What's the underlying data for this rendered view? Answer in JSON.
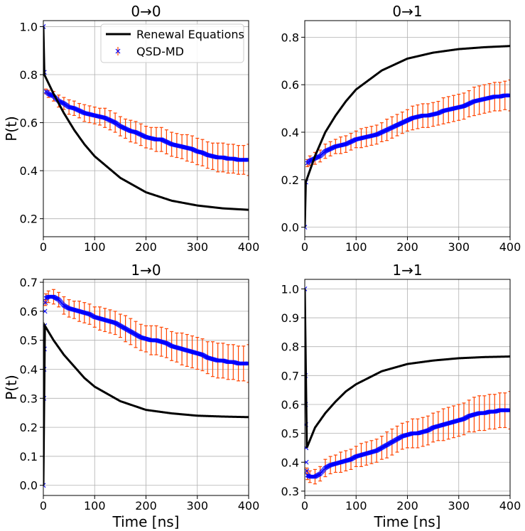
{
  "chart_data": [
    {
      "type": "line",
      "title": "0→0",
      "xlabel": "",
      "ylabel": "P(t)",
      "xlim": [
        0,
        400
      ],
      "ylim": [
        0.125,
        1.025
      ],
      "xticks": [
        0,
        100,
        200,
        300,
        400
      ],
      "yticks": [
        0.2,
        0.4,
        0.6,
        0.8,
        1.0
      ],
      "ytick_labels": [
        "0.2",
        "0.4",
        "0.6",
        "0.8",
        "1.0"
      ],
      "grid": true,
      "legend": {
        "position": "top-right",
        "entries": [
          "Renewal Equations",
          "QSD-MD"
        ]
      },
      "series": [
        {
          "name": "Renewal Equations",
          "kind": "line",
          "color": "#000000",
          "x": [
            0,
            2,
            20,
            40,
            60,
            80,
            100,
            150,
            200,
            250,
            300,
            350,
            400
          ],
          "y": [
            1.0,
            0.8,
            0.72,
            0.64,
            0.57,
            0.51,
            0.46,
            0.37,
            0.31,
            0.275,
            0.255,
            0.243,
            0.237
          ]
        },
        {
          "name": "QSD-MD",
          "kind": "errorbar",
          "color": "#0000ff",
          "errcolor": "#ff4500",
          "x": [
            0,
            2,
            5,
            10,
            20,
            30,
            40,
            50,
            60,
            70,
            80,
            90,
            100,
            110,
            120,
            130,
            140,
            150,
            160,
            170,
            180,
            190,
            200,
            210,
            220,
            230,
            240,
            250,
            260,
            270,
            280,
            290,
            300,
            310,
            320,
            330,
            340,
            350,
            360,
            370,
            380,
            390,
            400
          ],
          "y": [
            1.0,
            0.81,
            0.73,
            0.72,
            0.71,
            0.69,
            0.68,
            0.665,
            0.66,
            0.65,
            0.64,
            0.635,
            0.63,
            0.625,
            0.62,
            0.61,
            0.6,
            0.585,
            0.575,
            0.565,
            0.56,
            0.55,
            0.54,
            0.535,
            0.53,
            0.53,
            0.52,
            0.51,
            0.505,
            0.5,
            0.495,
            0.49,
            0.48,
            0.475,
            0.465,
            0.46,
            0.455,
            0.455,
            0.45,
            0.45,
            0.445,
            0.445,
            0.445
          ],
          "err": [
            0,
            0,
            0.01,
            0.015,
            0.02,
            0.025,
            0.025,
            0.03,
            0.03,
            0.03,
            0.035,
            0.035,
            0.035,
            0.035,
            0.04,
            0.04,
            0.04,
            0.04,
            0.04,
            0.045,
            0.045,
            0.045,
            0.045,
            0.045,
            0.05,
            0.05,
            0.05,
            0.05,
            0.05,
            0.05,
            0.055,
            0.055,
            0.055,
            0.055,
            0.055,
            0.055,
            0.06,
            0.06,
            0.06,
            0.06,
            0.06,
            0.06,
            0.065
          ]
        }
      ]
    },
    {
      "type": "line",
      "title": "0→1",
      "xlabel": "",
      "ylabel": "",
      "xlim": [
        0,
        400
      ],
      "ylim": [
        -0.04,
        0.87
      ],
      "xticks": [
        0,
        100,
        200,
        300,
        400
      ],
      "yticks": [
        0.0,
        0.2,
        0.4,
        0.6,
        0.8
      ],
      "ytick_labels": [
        "0.0",
        "0.2",
        "0.4",
        "0.6",
        "0.8"
      ],
      "grid": true,
      "series": [
        {
          "name": "Renewal Equations",
          "kind": "line",
          "color": "#000000",
          "x": [
            0,
            2,
            20,
            40,
            60,
            80,
            100,
            150,
            200,
            250,
            300,
            350,
            400
          ],
          "y": [
            0.0,
            0.19,
            0.3,
            0.4,
            0.47,
            0.53,
            0.58,
            0.66,
            0.71,
            0.735,
            0.75,
            0.758,
            0.763
          ]
        },
        {
          "name": "QSD-MD",
          "kind": "errorbar",
          "color": "#0000ff",
          "errcolor": "#ff4500",
          "x": [
            0,
            2,
            5,
            10,
            20,
            30,
            40,
            50,
            60,
            70,
            80,
            90,
            100,
            110,
            120,
            130,
            140,
            150,
            160,
            170,
            180,
            190,
            200,
            210,
            220,
            230,
            240,
            250,
            260,
            270,
            280,
            290,
            300,
            310,
            320,
            330,
            340,
            350,
            360,
            370,
            380,
            390,
            400
          ],
          "y": [
            0.0,
            0.19,
            0.27,
            0.28,
            0.29,
            0.3,
            0.32,
            0.33,
            0.34,
            0.345,
            0.35,
            0.36,
            0.37,
            0.375,
            0.38,
            0.385,
            0.39,
            0.4,
            0.41,
            0.42,
            0.43,
            0.44,
            0.45,
            0.46,
            0.465,
            0.47,
            0.47,
            0.475,
            0.48,
            0.49,
            0.495,
            0.5,
            0.505,
            0.51,
            0.52,
            0.53,
            0.535,
            0.54,
            0.545,
            0.55,
            0.55,
            0.555,
            0.555
          ],
          "err": [
            0,
            0,
            0.015,
            0.02,
            0.025,
            0.025,
            0.03,
            0.03,
            0.03,
            0.035,
            0.035,
            0.035,
            0.035,
            0.04,
            0.04,
            0.04,
            0.04,
            0.04,
            0.045,
            0.045,
            0.045,
            0.045,
            0.045,
            0.05,
            0.05,
            0.05,
            0.05,
            0.05,
            0.05,
            0.055,
            0.055,
            0.055,
            0.055,
            0.055,
            0.055,
            0.06,
            0.06,
            0.06,
            0.06,
            0.06,
            0.06,
            0.06,
            0.065
          ]
        }
      ]
    },
    {
      "type": "line",
      "title": "1→0",
      "xlabel": "Time [ns]",
      "ylabel": "P(t)",
      "xlim": [
        0,
        400
      ],
      "ylim": [
        -0.035,
        0.71
      ],
      "xticks": [
        0,
        100,
        200,
        300,
        400
      ],
      "yticks": [
        0.0,
        0.1,
        0.2,
        0.3,
        0.4,
        0.5,
        0.6,
        0.7
      ],
      "ytick_labels": [
        "0.0",
        "0.1",
        "0.2",
        "0.3",
        "0.4",
        "0.5",
        "0.6",
        "0.7"
      ],
      "grid": true,
      "series": [
        {
          "name": "Renewal Equations",
          "kind": "line",
          "color": "#000000",
          "x": [
            0,
            3,
            20,
            40,
            60,
            80,
            100,
            150,
            200,
            250,
            300,
            350,
            400
          ],
          "y": [
            0.0,
            0.55,
            0.5,
            0.45,
            0.41,
            0.37,
            0.34,
            0.29,
            0.26,
            0.248,
            0.24,
            0.237,
            0.235
          ]
        },
        {
          "name": "QSD-MD",
          "kind": "errorbar",
          "color": "#0000ff",
          "errcolor": "#ff4500",
          "x": [
            0,
            1,
            1.5,
            2,
            2.5,
            3,
            4,
            5,
            10,
            20,
            30,
            40,
            50,
            60,
            70,
            80,
            90,
            100,
            110,
            120,
            130,
            140,
            150,
            160,
            170,
            180,
            190,
            200,
            210,
            220,
            230,
            240,
            250,
            260,
            270,
            280,
            290,
            300,
            310,
            320,
            330,
            340,
            350,
            360,
            370,
            380,
            390,
            400
          ],
          "y": [
            0.0,
            0.3,
            0.4,
            0.47,
            0.55,
            0.6,
            0.63,
            0.645,
            0.65,
            0.65,
            0.64,
            0.62,
            0.61,
            0.605,
            0.6,
            0.595,
            0.59,
            0.58,
            0.575,
            0.57,
            0.565,
            0.56,
            0.55,
            0.54,
            0.53,
            0.52,
            0.51,
            0.505,
            0.5,
            0.5,
            0.495,
            0.49,
            0.48,
            0.475,
            0.47,
            0.465,
            0.46,
            0.455,
            0.45,
            0.44,
            0.435,
            0.43,
            0.43,
            0.425,
            0.425,
            0.42,
            0.42,
            0.42
          ],
          "err": [
            0,
            0,
            0,
            0,
            0,
            0,
            0.01,
            0.015,
            0.02,
            0.025,
            0.025,
            0.03,
            0.03,
            0.03,
            0.035,
            0.035,
            0.035,
            0.035,
            0.04,
            0.04,
            0.04,
            0.04,
            0.04,
            0.045,
            0.045,
            0.045,
            0.045,
            0.045,
            0.05,
            0.05,
            0.05,
            0.05,
            0.05,
            0.05,
            0.055,
            0.055,
            0.055,
            0.055,
            0.055,
            0.055,
            0.06,
            0.06,
            0.06,
            0.06,
            0.06,
            0.06,
            0.06,
            0.065
          ]
        }
      ]
    },
    {
      "type": "line",
      "title": "1→1",
      "xlabel": "Time [ns]",
      "ylabel": "",
      "xlim": [
        0,
        400
      ],
      "ylim": [
        0.285,
        1.033
      ],
      "xticks": [
        0,
        100,
        200,
        300,
        400
      ],
      "yticks": [
        0.3,
        0.4,
        0.5,
        0.6,
        0.7,
        0.8,
        0.9,
        1.0
      ],
      "ytick_labels": [
        "0.3",
        "0.4",
        "0.5",
        "0.6",
        "0.7",
        "0.8",
        "0.9",
        "1.0"
      ],
      "grid": true,
      "series": [
        {
          "name": "Renewal Equations",
          "kind": "line",
          "color": "#000000",
          "x": [
            0,
            4,
            20,
            40,
            60,
            80,
            100,
            150,
            200,
            250,
            300,
            350,
            400
          ],
          "y": [
            1.0,
            0.45,
            0.52,
            0.57,
            0.61,
            0.645,
            0.67,
            0.715,
            0.74,
            0.752,
            0.76,
            0.764,
            0.766
          ]
        },
        {
          "name": "QSD-MD",
          "kind": "errorbar",
          "color": "#0000ff",
          "errcolor": "#ff4500",
          "x": [
            0,
            1,
            1.5,
            2,
            2.5,
            3,
            4,
            5,
            10,
            20,
            30,
            40,
            50,
            60,
            70,
            80,
            90,
            100,
            110,
            120,
            130,
            140,
            150,
            160,
            170,
            180,
            190,
            200,
            210,
            220,
            230,
            240,
            250,
            260,
            270,
            280,
            290,
            300,
            310,
            320,
            330,
            340,
            350,
            360,
            370,
            380,
            390,
            400
          ],
          "y": [
            1.0,
            0.7,
            0.6,
            0.53,
            0.45,
            0.4,
            0.37,
            0.355,
            0.35,
            0.35,
            0.36,
            0.38,
            0.39,
            0.395,
            0.4,
            0.405,
            0.41,
            0.42,
            0.425,
            0.43,
            0.435,
            0.44,
            0.45,
            0.46,
            0.47,
            0.48,
            0.49,
            0.495,
            0.5,
            0.5,
            0.505,
            0.51,
            0.52,
            0.525,
            0.53,
            0.535,
            0.54,
            0.545,
            0.55,
            0.56,
            0.565,
            0.57,
            0.57,
            0.575,
            0.575,
            0.58,
            0.58,
            0.58
          ],
          "err": [
            0,
            0,
            0,
            0,
            0,
            0,
            0.01,
            0.015,
            0.02,
            0.025,
            0.025,
            0.03,
            0.03,
            0.03,
            0.035,
            0.035,
            0.035,
            0.035,
            0.04,
            0.04,
            0.04,
            0.04,
            0.04,
            0.045,
            0.045,
            0.045,
            0.045,
            0.045,
            0.05,
            0.05,
            0.05,
            0.05,
            0.05,
            0.05,
            0.055,
            0.055,
            0.055,
            0.055,
            0.055,
            0.055,
            0.06,
            0.06,
            0.06,
            0.06,
            0.06,
            0.06,
            0.06,
            0.065
          ]
        }
      ]
    }
  ]
}
